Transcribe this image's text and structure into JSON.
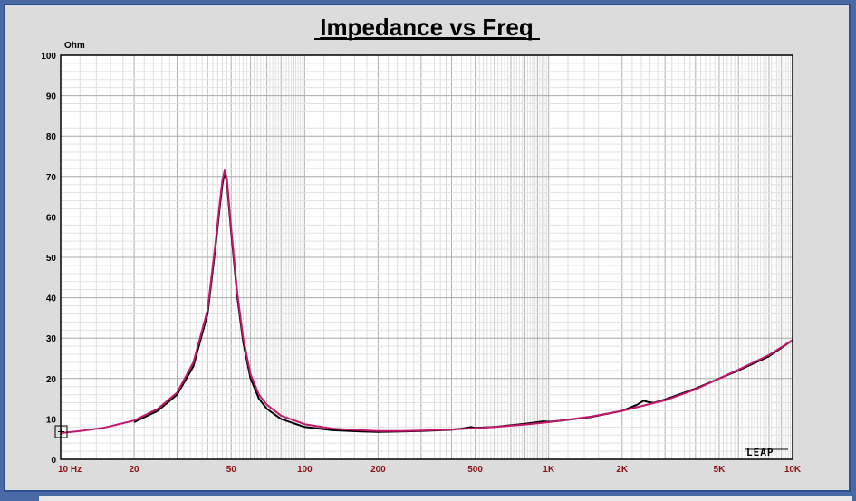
{
  "chart_data": {
    "type": "line",
    "title": "Impedance vs Freq",
    "ylabel": "Ohm",
    "xlabel": "",
    "x_scale": "log",
    "xlim": [
      10,
      10000
    ],
    "ylim": [
      0,
      100
    ],
    "grid": true,
    "y_ticks": [
      "0",
      "10",
      "20",
      "30",
      "40",
      "50",
      "60",
      "70",
      "80",
      "90",
      "100"
    ],
    "x_ticks": [
      {
        "value": 10,
        "label": "10  Hz"
      },
      {
        "value": 20,
        "label": "20"
      },
      {
        "value": 50,
        "label": "50"
      },
      {
        "value": 100,
        "label": "100"
      },
      {
        "value": 200,
        "label": "200"
      },
      {
        "value": 500,
        "label": "500"
      },
      {
        "value": 1000,
        "label": "1K"
      },
      {
        "value": 2000,
        "label": "2K"
      },
      {
        "value": 5000,
        "label": "5K"
      },
      {
        "value": 10000,
        "label": "10K"
      }
    ],
    "series": [
      {
        "color": "#000000",
        "x": [
          20,
          25,
          30,
          35,
          40,
          43,
          45,
          46,
          47,
          48,
          50,
          53,
          56,
          60,
          65,
          70,
          80,
          100,
          130,
          170,
          200,
          250,
          300,
          400,
          450,
          480,
          500,
          600,
          800,
          950,
          1000,
          1100,
          1500,
          2000,
          2300,
          2450,
          2550,
          2700,
          3000,
          4000,
          5000,
          6000,
          8000,
          10000
        ],
        "y": [
          9.2,
          12.0,
          16.0,
          23.0,
          36.0,
          52.0,
          63.0,
          68.0,
          71.0,
          68.5,
          56.0,
          40.0,
          29.0,
          20.0,
          15.0,
          12.5,
          10.0,
          8.0,
          7.2,
          6.9,
          6.8,
          6.9,
          7.0,
          7.3,
          7.7,
          8.0,
          7.8,
          8.0,
          8.8,
          9.4,
          9.3,
          9.5,
          10.5,
          12.0,
          13.5,
          14.5,
          14.2,
          14.0,
          14.8,
          17.5,
          20.0,
          22.0,
          25.5,
          29.5
        ]
      },
      {
        "color": "#c2186b",
        "x": [
          10,
          12,
          15,
          20,
          25,
          30,
          35,
          40,
          43,
          45,
          46,
          47,
          48,
          50,
          53,
          56,
          60,
          65,
          70,
          80,
          100,
          130,
          170,
          200,
          250,
          300,
          400,
          500,
          600,
          800,
          1000,
          1500,
          2000,
          3000,
          4000,
          5000,
          6000,
          8000,
          10000
        ],
        "y": [
          6.5,
          7.0,
          7.8,
          9.6,
          12.5,
          16.5,
          24.0,
          37.0,
          53.0,
          64.0,
          69.0,
          71.5,
          69.5,
          57.0,
          41.0,
          30.0,
          21.0,
          16.0,
          13.5,
          10.8,
          8.7,
          7.6,
          7.2,
          7.0,
          7.0,
          7.1,
          7.4,
          7.7,
          8.0,
          8.6,
          9.2,
          10.6,
          12.0,
          14.6,
          17.3,
          20.0,
          22.2,
          25.8,
          29.5
        ]
      }
    ]
  },
  "logo": "LEAP"
}
